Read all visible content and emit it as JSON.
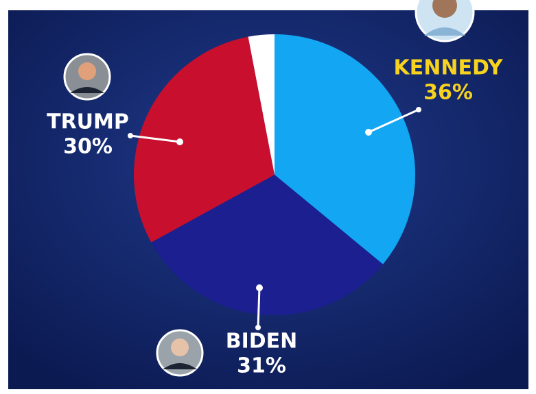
{
  "chart_data": {
    "type": "pie",
    "categories": [
      "KENNEDY",
      "BIDEN",
      "TRUMP",
      null
    ],
    "values": [
      36,
      31,
      30,
      3
    ],
    "value_labels": [
      "36%",
      "31%",
      "30%",
      null
    ],
    "colors": [
      "#13a6f2",
      "#1b1f8f",
      "#c8102e",
      "#ffffff"
    ],
    "label_colors": [
      "#f7d21e",
      "#ffffff",
      "#ffffff",
      null
    ]
  }
}
